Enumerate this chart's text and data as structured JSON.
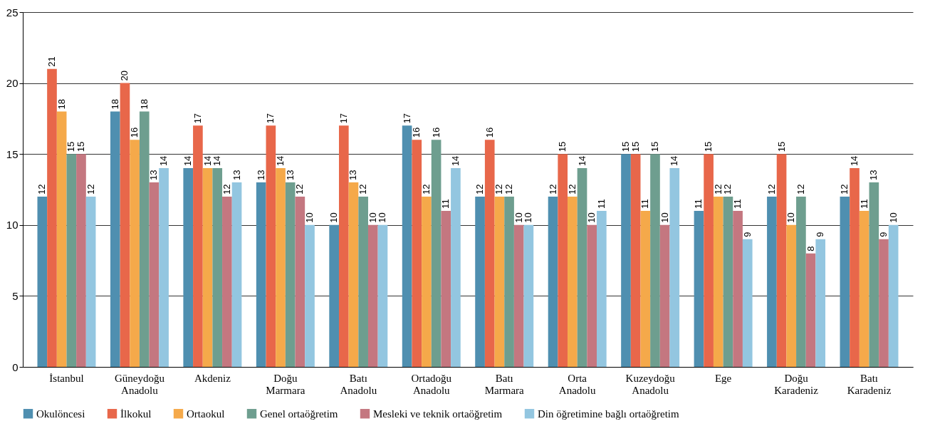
{
  "chart_data": {
    "type": "bar",
    "categories": [
      "İstanbul",
      "Güneydoğu Anadolu",
      "Akdeniz",
      "Doğu Marmara",
      "Batı Anadolu",
      "Ortadoğu Anadolu",
      "Batı Marmara",
      "Orta Anadolu",
      "Kuzeydoğu Anadolu",
      "Ege",
      "Doğu Karadeniz",
      "Batı Karadeniz"
    ],
    "series": [
      {
        "name": "Okulöncesi",
        "color": "#4f8fb0",
        "values": [
          12,
          18,
          14,
          13,
          10,
          17,
          12,
          12,
          15,
          11,
          12,
          12
        ]
      },
      {
        "name": "İlkokul",
        "color": "#e8674a",
        "values": [
          21,
          20,
          17,
          17,
          17,
          16,
          16,
          15,
          15,
          15,
          15,
          14
        ]
      },
      {
        "name": "Ortaokul",
        "color": "#f5a94a",
        "values": [
          18,
          16,
          14,
          14,
          13,
          12,
          12,
          12,
          11,
          12,
          10,
          11
        ]
      },
      {
        "name": "Genel ortaöğretim",
        "color": "#6e9e8f",
        "values": [
          15,
          18,
          14,
          13,
          12,
          16,
          12,
          14,
          15,
          12,
          12,
          13
        ]
      },
      {
        "name": "Mesleki ve teknik ortaöğretim",
        "color": "#c47780",
        "values": [
          15,
          13,
          12,
          12,
          10,
          11,
          10,
          10,
          10,
          11,
          8,
          9
        ]
      },
      {
        "name": "Din öğretimine bağlı ortaöğretim",
        "color": "#93c6e0",
        "values": [
          12,
          14,
          13,
          10,
          10,
          14,
          10,
          11,
          14,
          9,
          9,
          10
        ]
      }
    ],
    "ylim": [
      0,
      25
    ],
    "yticks": [
      0,
      5,
      10,
      15,
      20,
      25
    ],
    "grid": "y",
    "legend": "bottom",
    "data_labels": true
  }
}
